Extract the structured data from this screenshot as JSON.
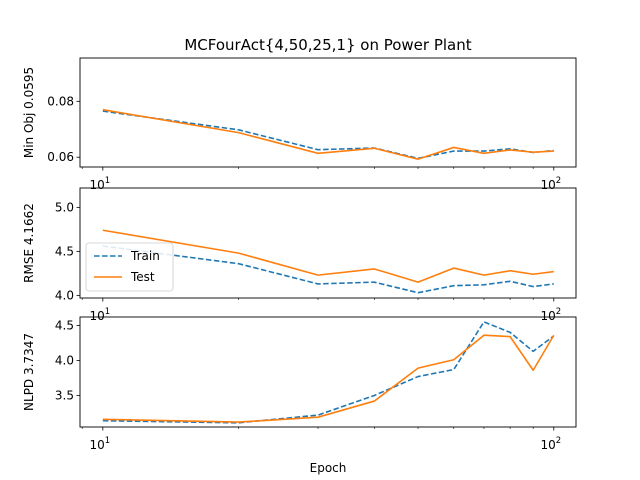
{
  "chart_data": {
    "type": "line",
    "title": "MCFourAct{4,50,25,1} on Power Plant",
    "xlabel": "Epoch",
    "xscale": "log",
    "xlim": [
      8.9,
      112
    ],
    "x_ticks": [
      {
        "value": 10,
        "base": "10",
        "exp": "1"
      },
      {
        "value": 100,
        "base": "10",
        "exp": "2"
      }
    ],
    "x": [
      10,
      20,
      30,
      40,
      50,
      60,
      70,
      80,
      90,
      100
    ],
    "colors": {
      "Train": "#1f77b4",
      "Test": "#ff7f0e"
    },
    "legend": {
      "location": "lower-left of middle panel",
      "entries": [
        "Train",
        "Test"
      ]
    },
    "panels": [
      {
        "ylabel": "Min Obj 0.0595",
        "ylim": [
          0.0565,
          0.0955
        ],
        "yticks": [
          "0.06",
          "0.08"
        ],
        "series": [
          {
            "name": "Train",
            "style": "dashed",
            "values": [
              0.0765,
              0.0698,
              0.0627,
              0.0633,
              0.0596,
              0.0622,
              0.0622,
              0.063,
              0.0617,
              0.0624
            ]
          },
          {
            "name": "Test",
            "style": "solid",
            "values": [
              0.077,
              0.0688,
              0.0614,
              0.0632,
              0.0593,
              0.0635,
              0.0614,
              0.0626,
              0.0618,
              0.0622
            ]
          }
        ]
      },
      {
        "ylabel": "RMSE 4.1662",
        "ylim": [
          3.97,
          5.22
        ],
        "yticks": [
          "4.0",
          "4.5",
          "5.0"
        ],
        "series": [
          {
            "name": "Train",
            "style": "dashed",
            "values": [
              4.56,
              4.36,
              4.13,
              4.15,
              4.03,
              4.11,
              4.12,
              4.16,
              4.1,
              4.13
            ]
          },
          {
            "name": "Test",
            "style": "solid",
            "values": [
              4.74,
              4.48,
              4.23,
              4.3,
              4.15,
              4.31,
              4.23,
              4.28,
              4.24,
              4.27
            ]
          }
        ]
      },
      {
        "ylabel": "NLPD 3.7347",
        "ylim": [
          3.05,
          4.62
        ],
        "yticks": [
          "3.5",
          "4.0",
          "4.5"
        ],
        "series": [
          {
            "name": "Train",
            "style": "dashed",
            "values": [
              3.14,
              3.11,
              3.22,
              3.5,
              3.77,
              3.87,
              4.55,
              4.4,
              4.13,
              4.35
            ]
          },
          {
            "name": "Test",
            "style": "solid",
            "values": [
              3.16,
              3.12,
              3.19,
              3.42,
              3.89,
              4.01,
              4.36,
              4.34,
              3.86,
              4.36
            ]
          }
        ]
      }
    ]
  }
}
